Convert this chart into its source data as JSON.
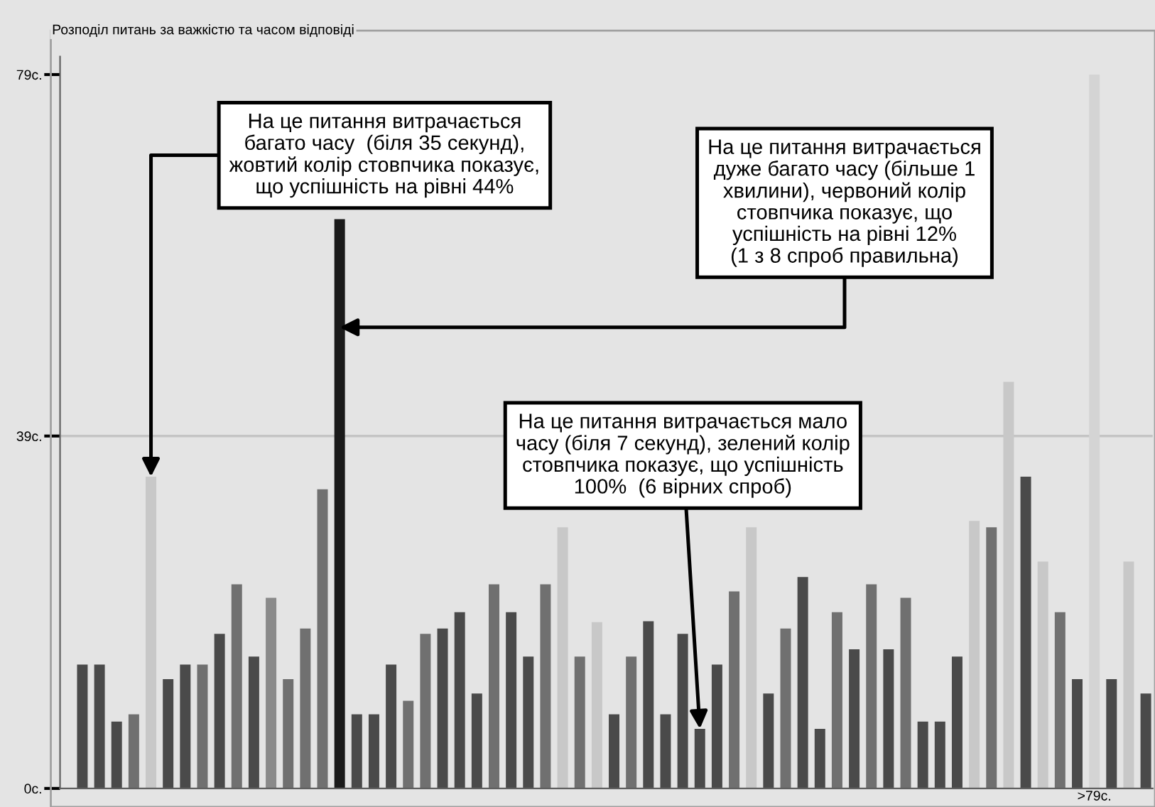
{
  "chart_data": {
    "type": "bar",
    "title": "Розподіл питань за важкістю та часом відповіді",
    "categories": [
      null,
      null,
      null,
      null,
      null,
      null,
      null,
      null,
      null,
      null,
      null,
      null,
      null,
      null,
      null,
      null,
      null,
      null,
      null,
      null,
      null,
      null,
      null,
      null,
      null,
      null,
      null,
      null,
      null,
      null,
      null,
      null,
      null,
      null,
      null,
      null,
      null,
      null,
      null,
      null,
      null,
      null,
      null,
      null,
      null,
      null,
      null,
      null,
      null,
      null,
      null,
      null,
      null,
      null,
      null,
      null,
      null,
      null,
      null,
      ">79c.",
      null,
      null,
      null
    ],
    "values": [
      13.7,
      13.7,
      7.4,
      8.2,
      34.5,
      12.1,
      13.7,
      13.7,
      17.1,
      22.6,
      14.6,
      21.1,
      12.1,
      17.7,
      33.1,
      63,
      8.2,
      8.2,
      13.7,
      9.7,
      17.1,
      17.7,
      19.5,
      10.5,
      22.6,
      19.5,
      14.6,
      22.6,
      28.9,
      14.6,
      18.4,
      8.2,
      14.6,
      18.5,
      8.2,
      17.1,
      6.6,
      13.7,
      21.8,
      28.9,
      10.5,
      17.7,
      23.4,
      6.6,
      19.5,
      15.4,
      22.6,
      15.4,
      21.1,
      7.4,
      7.4,
      14.6,
      29.6,
      28.9,
      45,
      34.5,
      25.1,
      19.5,
      12.1,
      79,
      12.1,
      25.1,
      10.5
    ],
    "colors": [
      "#4a4a4a",
      "#4a4a4a",
      "#4a4a4a",
      "#707070",
      "#c8c8c8",
      "#4a4a4a",
      "#4a4a4a",
      "#707070",
      "#4a4a4a",
      "#707070",
      "#4a4a4a",
      "#8a8a8a",
      "#707070",
      "#707070",
      "#707070",
      "#1a1a1a",
      "#4a4a4a",
      "#4a4a4a",
      "#4a4a4a",
      "#707070",
      "#707070",
      "#4a4a4a",
      "#4a4a4a",
      "#4a4a4a",
      "#707070",
      "#4a4a4a",
      "#4a4a4a",
      "#707070",
      "#c8c8c8",
      "#707070",
      "#c8c8c8",
      "#4a4a4a",
      "#707070",
      "#4a4a4a",
      "#4a4a4a",
      "#4a4a4a",
      "#4a4a4a",
      "#4a4a4a",
      "#707070",
      "#c8c8c8",
      "#4a4a4a",
      "#707070",
      "#4a4a4a",
      "#4a4a4a",
      "#707070",
      "#4a4a4a",
      "#707070",
      "#4a4a4a",
      "#707070",
      "#4a4a4a",
      "#4a4a4a",
      "#4a4a4a",
      "#c8c8c8",
      "#707070",
      "#c8c8c8",
      "#4a4a4a",
      "#c8c8c8",
      "#707070",
      "#4a4a4a",
      "#d4d4d4",
      "#4a4a4a",
      "#c8c8c8",
      "#4a4a4a"
    ],
    "ylim": [
      0,
      81
    ],
    "yticks": [
      {
        "value": 0,
        "label": "0c."
      },
      {
        "value": 39,
        "label": "39c."
      },
      {
        "value": 79,
        "label": "79c."
      }
    ],
    "ref_lines": [
      {
        "axis": "y",
        "value": 39,
        "color": "#c4c4c4"
      }
    ],
    "grid": false,
    "annotations": [
      "На це питання витрачається\nбагато часу  (біля 35 секунд),\nжовтий колір стовпчика показує,\nщо успішність на рівні 44%",
      "На це питання витрачається\nдуже багато часу (більше 1\nхвилини), червоний колір\nстовпчика показує, що\nуспішність на рівні 12%\n(1 з 8 спроб правильна)",
      "На це питання витрачається мало\nчасу (біля 7 секунд), зелений колір\nстовпчика показує, що успішність\n100%  (6 вірних спроб)"
    ]
  }
}
